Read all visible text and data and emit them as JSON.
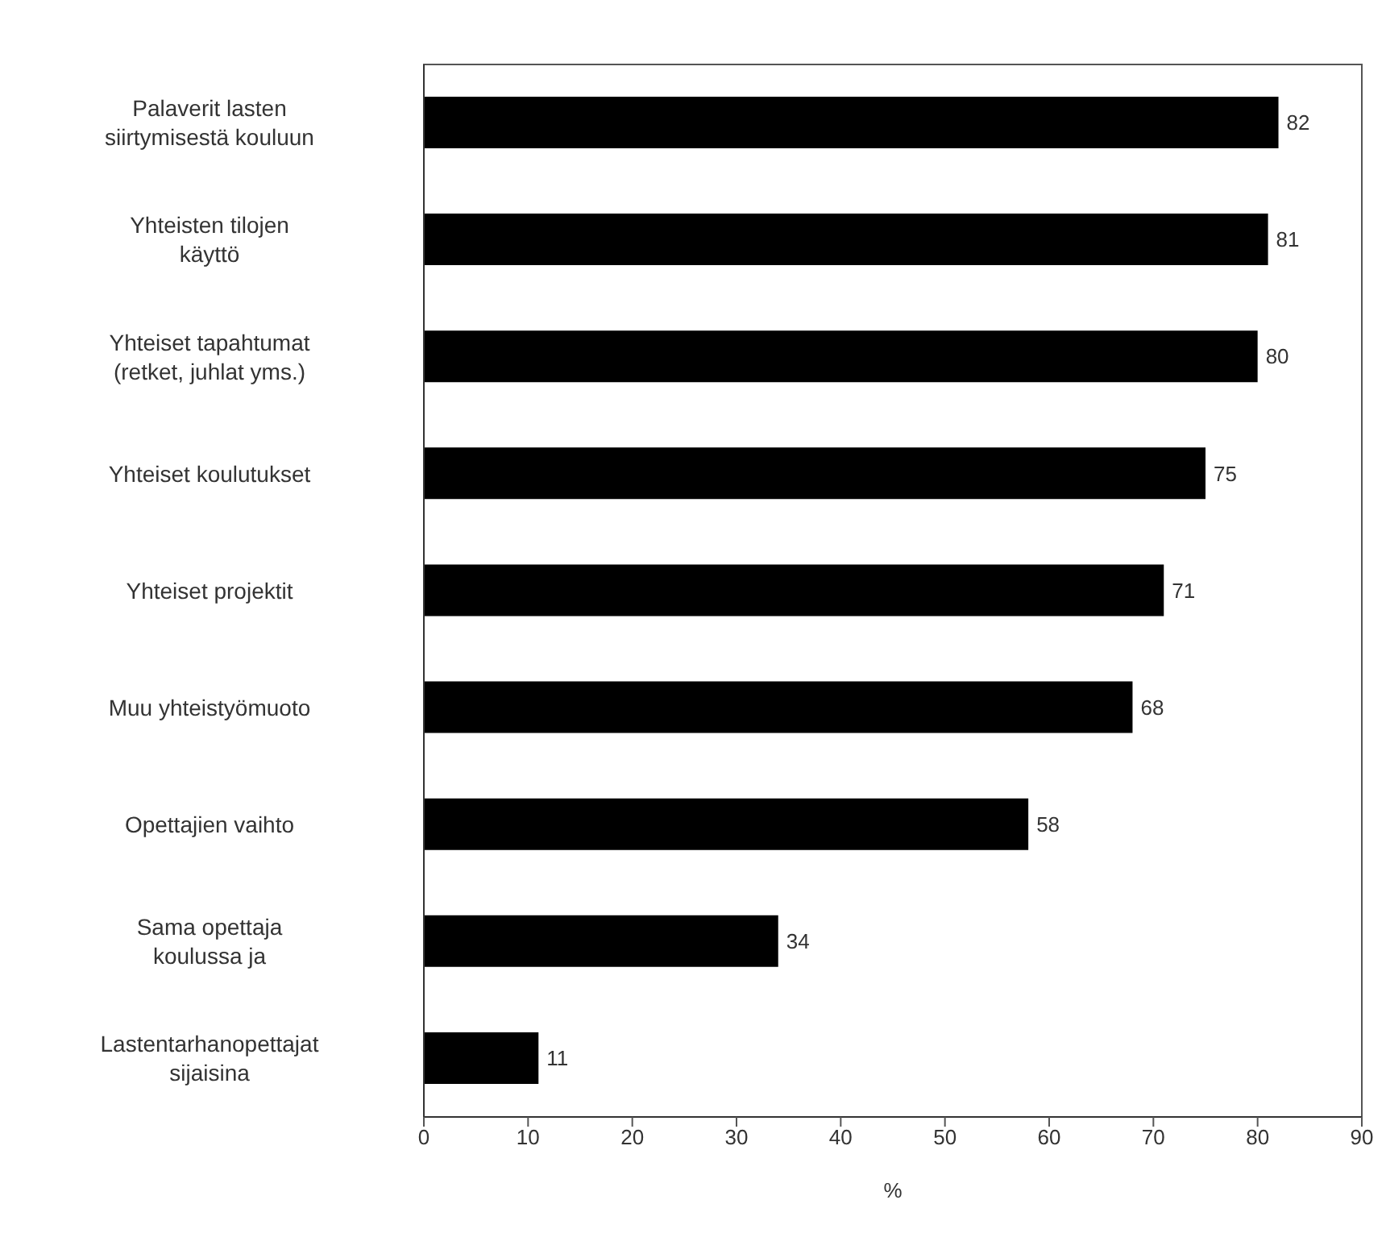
{
  "chart_data": {
    "type": "bar",
    "orientation": "horizontal",
    "categories": [
      "Palaverit lasten siirtymisestä kouluun",
      "Yhteisten tilojen käyttö",
      "Yhteiset tapahtumat (retket, juhlat yms.)",
      "Yhteiset koulutukset",
      "Yhteiset projektit",
      "Muu yhteistyömuoto",
      "Opettajien vaihto",
      "Sama opettaja koulussa ja",
      "Lastentarhanopettajat sijaisina"
    ],
    "values": [
      82,
      81,
      80,
      75,
      71,
      68,
      58,
      34,
      11
    ],
    "color": "#000000",
    "xlabel": "%",
    "xlim": [
      0,
      90
    ],
    "xticks": [
      0,
      10,
      20,
      30,
      40,
      50,
      60,
      70,
      80,
      90
    ],
    "data_labels": true,
    "grid": false
  }
}
